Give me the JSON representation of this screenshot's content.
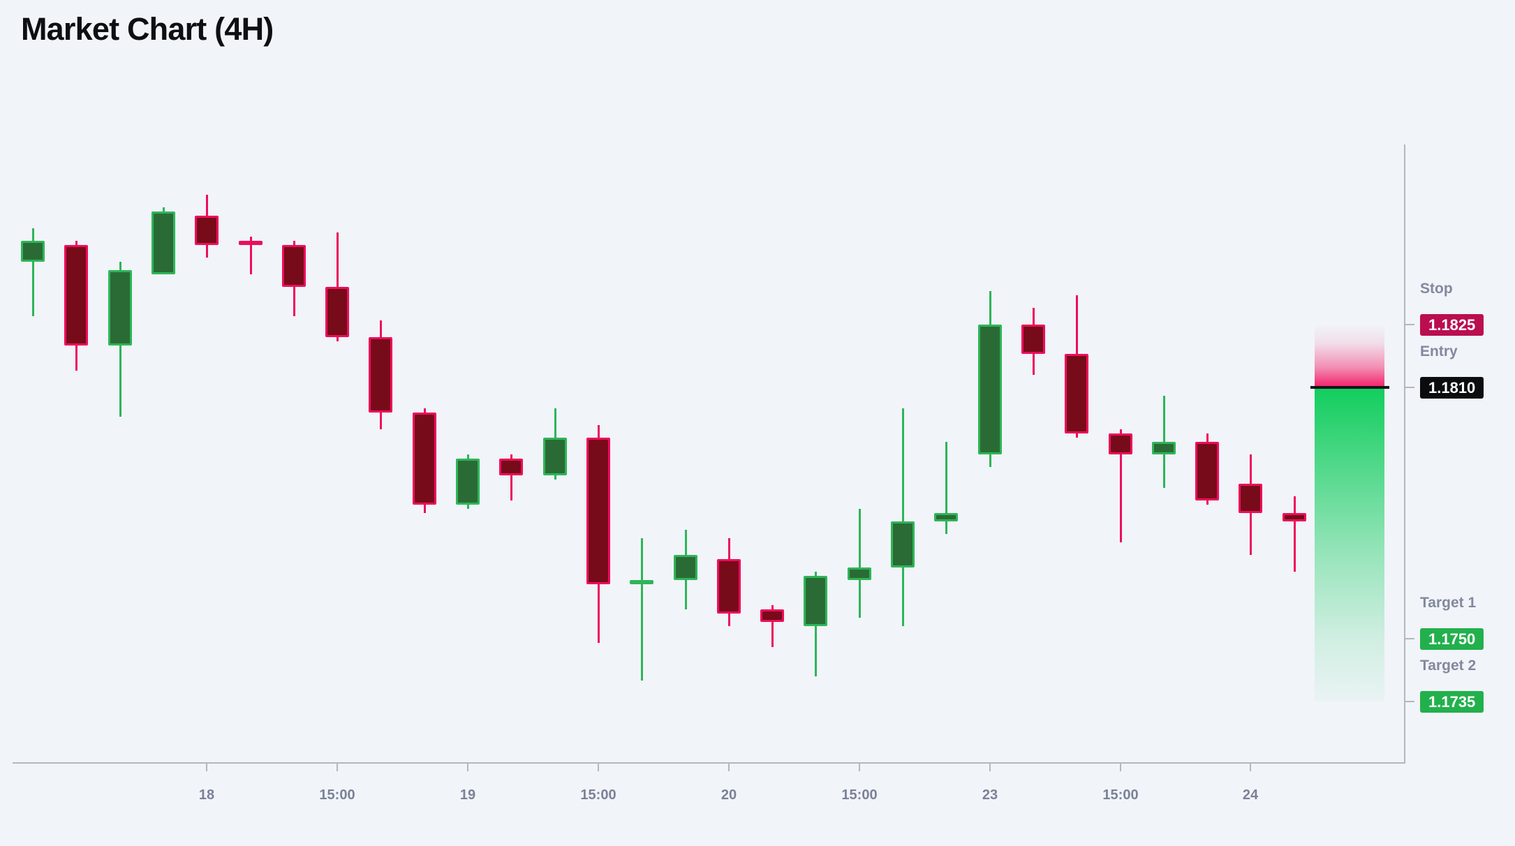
{
  "page": {
    "title": "Market Chart (4H)"
  },
  "chart_data": {
    "type": "candlestick",
    "title": "Market Chart (4H)",
    "timeframe": "4H",
    "legend_position": "none",
    "grid": false,
    "y_axis": {
      "visible_price_range": [
        1.1735,
        1.186
      ],
      "labels_shown": false
    },
    "x_axis": {
      "ticks": [
        {
          "label": "18",
          "candle_index": 4
        },
        {
          "label": "15:00",
          "candle_index": 7
        },
        {
          "label": "19",
          "candle_index": 10
        },
        {
          "label": "15:00",
          "candle_index": 13
        },
        {
          "label": "20",
          "candle_index": 16
        },
        {
          "label": "15:00",
          "candle_index": 19
        },
        {
          "label": "23",
          "candle_index": 22
        },
        {
          "label": "15:00",
          "candle_index": 25
        },
        {
          "label": "24",
          "candle_index": 28
        }
      ]
    },
    "candles": [
      {
        "o": 1.184,
        "h": 1.1848,
        "l": 1.1827,
        "c": 1.1845
      },
      {
        "o": 1.1844,
        "h": 1.1845,
        "l": 1.1814,
        "c": 1.182
      },
      {
        "o": 1.182,
        "h": 1.184,
        "l": 1.1803,
        "c": 1.1838
      },
      {
        "o": 1.1837,
        "h": 1.1853,
        "l": 1.1837,
        "c": 1.1852
      },
      {
        "o": 1.1851,
        "h": 1.1856,
        "l": 1.1841,
        "c": 1.1844
      },
      {
        "o": 1.1845,
        "h": 1.1846,
        "l": 1.1837,
        "c": 1.1844
      },
      {
        "o": 1.1844,
        "h": 1.1845,
        "l": 1.1827,
        "c": 1.1834
      },
      {
        "o": 1.1834,
        "h": 1.1847,
        "l": 1.1821,
        "c": 1.1822
      },
      {
        "o": 1.1822,
        "h": 1.1826,
        "l": 1.18,
        "c": 1.1804
      },
      {
        "o": 1.1804,
        "h": 1.1805,
        "l": 1.178,
        "c": 1.1782
      },
      {
        "o": 1.1782,
        "h": 1.1794,
        "l": 1.1781,
        "c": 1.1793
      },
      {
        "o": 1.1793,
        "h": 1.1794,
        "l": 1.1783,
        "c": 1.1789
      },
      {
        "o": 1.1789,
        "h": 1.1805,
        "l": 1.1788,
        "c": 1.1798
      },
      {
        "o": 1.1798,
        "h": 1.1801,
        "l": 1.1749,
        "c": 1.1763
      },
      {
        "o": 1.1763,
        "h": 1.1774,
        "l": 1.174,
        "c": 1.1764
      },
      {
        "o": 1.1764,
        "h": 1.1776,
        "l": 1.1757,
        "c": 1.177
      },
      {
        "o": 1.1769,
        "h": 1.1774,
        "l": 1.1753,
        "c": 1.1756
      },
      {
        "o": 1.1757,
        "h": 1.1758,
        "l": 1.1748,
        "c": 1.1754
      },
      {
        "o": 1.1753,
        "h": 1.1766,
        "l": 1.1741,
        "c": 1.1765
      },
      {
        "o": 1.1764,
        "h": 1.1781,
        "l": 1.1755,
        "c": 1.1767
      },
      {
        "o": 1.1767,
        "h": 1.1805,
        "l": 1.1753,
        "c": 1.1778
      },
      {
        "o": 1.1778,
        "h": 1.1797,
        "l": 1.1775,
        "c": 1.178
      },
      {
        "o": 1.1794,
        "h": 1.1833,
        "l": 1.1791,
        "c": 1.1825
      },
      {
        "o": 1.1825,
        "h": 1.1829,
        "l": 1.1813,
        "c": 1.1818
      },
      {
        "o": 1.1818,
        "h": 1.1832,
        "l": 1.1798,
        "c": 1.1799
      },
      {
        "o": 1.1799,
        "h": 1.18,
        "l": 1.1773,
        "c": 1.1794
      },
      {
        "o": 1.1794,
        "h": 1.1808,
        "l": 1.1786,
        "c": 1.1797
      },
      {
        "o": 1.1797,
        "h": 1.1799,
        "l": 1.1782,
        "c": 1.1783
      },
      {
        "o": 1.1787,
        "h": 1.1794,
        "l": 1.177,
        "c": 1.178
      },
      {
        "o": 1.178,
        "h": 1.1784,
        "l": 1.1766,
        "c": 1.1778
      }
    ],
    "levels": [
      {
        "id": "stop",
        "label": "Stop",
        "value": "1.1825",
        "price": 1.1825,
        "badge_color": "#BA0E50"
      },
      {
        "id": "entry",
        "label": "Entry",
        "value": "1.1810",
        "price": 1.181,
        "badge_color": "#0B0C0E"
      },
      {
        "id": "target1",
        "label": "Target 1",
        "value": "1.1750",
        "price": 1.175,
        "badge_color": "#22B04C"
      },
      {
        "id": "target2",
        "label": "Target 2",
        "value": "1.1735",
        "price": 1.1735,
        "badge_color": "#22B04C"
      }
    ],
    "zones": {
      "risk": {
        "from": "stop",
        "to": "entry",
        "color": "#F3145F"
      },
      "reward": {
        "from": "entry",
        "to": "target2",
        "color": "#0ACC58"
      }
    },
    "colors": {
      "background": "#F1F4F9",
      "bullish_fill": "#2A6B35",
      "bullish_stroke": "#2EB558",
      "bearish_fill": "#770B19",
      "bearish_stroke": "#EE0D5B",
      "entry_line": "#15161A",
      "axis": "#B4B7BF",
      "tick_label": "#7B8196",
      "level_label": "#83889D",
      "badge_text": "#FFFFFF"
    }
  }
}
